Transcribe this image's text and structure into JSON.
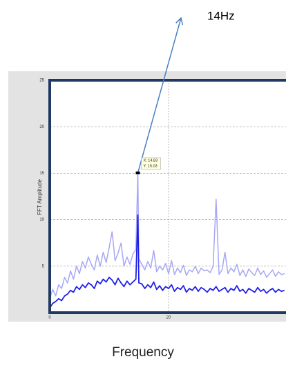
{
  "chart_data": {
    "type": "line",
    "ylabel": "FFT Amplitude",
    "xlabel": "Frequency",
    "callout": "14Hz",
    "datatip": [
      "X: 14.83",
      "Y: 15.03"
    ],
    "x": [
      0,
      0.5,
      1,
      1.5,
      2,
      2.5,
      3,
      3.5,
      4,
      4.5,
      5,
      5.5,
      6,
      6.5,
      7,
      7.5,
      8,
      8.5,
      9,
      9.5,
      10,
      10.5,
      11,
      11.5,
      12,
      12.5,
      13,
      13.5,
      14,
      14.5,
      14.83,
      15,
      15.5,
      16,
      16.5,
      17,
      17.5,
      18,
      18.5,
      19,
      19.5,
      20,
      20.5,
      21,
      21.5,
      22,
      22.5,
      23,
      23.5,
      24,
      24.5,
      25,
      25.5,
      26,
      26.5,
      27,
      27.5,
      28,
      28.5,
      29,
      29.5,
      30,
      30.5,
      31,
      31.5,
      32,
      32.5,
      33,
      33.5,
      34,
      34.5,
      35,
      35.5,
      36,
      36.5,
      37,
      37.5,
      38,
      38.5,
      39,
      39.5
    ],
    "series": [
      {
        "color": "#a7a7f5",
        "values": [
          1.5,
          2.5,
          1.8,
          3.0,
          2.6,
          3.8,
          3.2,
          4.5,
          3.6,
          5.0,
          4.2,
          5.5,
          4.8,
          6.0,
          5.2,
          4.6,
          6.2,
          5.0,
          6.5,
          5.4,
          7.0,
          8.7,
          5.6,
          6.4,
          7.5,
          5.0,
          6.0,
          5.2,
          6.3,
          6.8,
          15.03,
          5.8,
          5.2,
          4.6,
          5.5,
          4.8,
          6.7,
          4.4,
          5.0,
          4.6,
          5.3,
          4.2,
          5.6,
          4.1,
          4.8,
          4.3,
          5.1,
          4.0,
          4.6,
          4.4,
          5.0,
          4.2,
          4.8,
          4.5,
          4.6,
          4.3,
          5.0,
          12.2,
          4.1,
          4.6,
          6.5,
          4.2,
          4.8,
          4.4,
          5.2,
          4.0,
          4.6,
          3.9,
          4.7,
          4.3,
          4.0,
          4.8,
          4.1,
          4.5,
          3.8,
          4.2,
          4.6,
          3.9,
          4.4,
          4.1,
          4.2
        ]
      },
      {
        "color": "#1f1fe6",
        "values": [
          0.5,
          1.0,
          1.2,
          1.5,
          1.3,
          1.8,
          2.0,
          2.4,
          2.2,
          2.8,
          2.5,
          3.0,
          2.7,
          3.2,
          3.0,
          2.6,
          3.4,
          3.1,
          3.6,
          3.3,
          3.8,
          3.5,
          3.0,
          3.7,
          3.2,
          2.8,
          3.4,
          3.0,
          3.3,
          3.6,
          10.5,
          3.2,
          3.1,
          2.6,
          3.0,
          2.7,
          3.3,
          2.5,
          2.9,
          2.4,
          2.8,
          2.6,
          3.0,
          2.3,
          2.7,
          2.5,
          2.9,
          2.2,
          2.6,
          2.4,
          2.8,
          2.3,
          2.7,
          2.5,
          2.2,
          2.6,
          2.4,
          2.8,
          2.3,
          2.5,
          2.7,
          2.2,
          2.6,
          2.4,
          2.9,
          2.3,
          2.5,
          2.1,
          2.6,
          2.4,
          2.2,
          2.7,
          2.3,
          2.5,
          2.1,
          2.4,
          2.6,
          2.2,
          2.5,
          2.3,
          2.4
        ]
      }
    ],
    "xlim": [
      0,
      40
    ],
    "ylim": [
      0,
      25
    ],
    "xticks": [
      0,
      20
    ],
    "yticks": [
      5,
      10,
      15,
      20,
      25
    ],
    "grid": true
  }
}
